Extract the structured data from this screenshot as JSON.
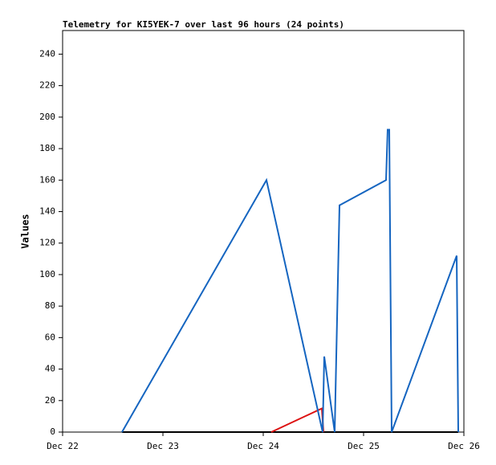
{
  "chart_data": {
    "type": "line",
    "title": "Telemetry for KI5YEK-7 over last 96 hours (24 points)",
    "y_label": "Values",
    "xlim": [
      0,
      4
    ],
    "xticks": [
      {
        "value": 0,
        "label": "Dec 22"
      },
      {
        "value": 1,
        "label": "Dec 23"
      },
      {
        "value": 2,
        "label": "Dec 24"
      },
      {
        "value": 3,
        "label": "Dec 25"
      },
      {
        "value": 4,
        "label": "Dec 26"
      }
    ],
    "ylim": [
      0,
      255
    ],
    "yticks": [
      0,
      20,
      40,
      60,
      80,
      100,
      120,
      140,
      160,
      180,
      200,
      220,
      240
    ],
    "series": [
      {
        "color": "#000000",
        "x": [
          0.592,
          3.944
        ],
        "values": [
          0,
          0
        ]
      },
      {
        "color": "#dd1111",
        "x": [
          2.08,
          2.584,
          2.6
        ],
        "values": [
          0,
          15,
          0
        ]
      },
      {
        "color": "#1565c0",
        "x": [
          0.592,
          2.032,
          2.592,
          2.608,
          2.712,
          2.76,
          3.224,
          3.24,
          3.256,
          3.28,
          3.928,
          3.944
        ],
        "values": [
          0,
          160,
          0,
          48,
          0,
          144,
          160,
          192,
          192,
          0,
          112,
          0
        ]
      }
    ]
  }
}
